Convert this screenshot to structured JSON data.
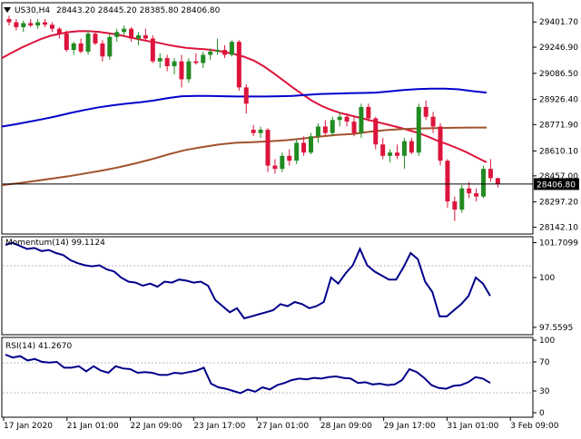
{
  "header": {
    "symbol_tf": "US30,H4",
    "ohlc": "28443.20 28445.20 28385.80 28406.80",
    "dropdown_icon": "triangle-down-icon"
  },
  "colors": {
    "background": "#ffffff",
    "bull_candle": "#228b22",
    "bear_candle": "#dc143c",
    "ma_fast": "#dc143c",
    "ma_mid": "#0000cd",
    "ma_slow": "#a0522d",
    "oscillator": "#00008b",
    "price_line": "#000000",
    "price_tag_bg": "#000000",
    "price_tag_text": "#ffffff"
  },
  "chart_data": [
    {
      "type": "candlestick",
      "title": "US30,H4",
      "ylim": [
        28100,
        29520
      ],
      "yticks": [
        "29401.70",
        "29246.90",
        "29086.50",
        "28926.40",
        "28771.90",
        "28610.10",
        "28457.00",
        "28297.20",
        "28142.10"
      ],
      "current_price": "28406.80",
      "time_labels": [
        "17 Jan 2020",
        "21 Jan 01:00",
        "22 Jan 09:00",
        "23 Jan 17:00",
        "27 Jan 01:00",
        "28 Jan 09:00",
        "29 Jan 17:00",
        "31 Jan 01:00",
        "3 Feb 09:00"
      ],
      "candles": [
        [
          29420,
          29440,
          29380,
          29400
        ],
        [
          29400,
          29420,
          29350,
          29370
        ],
        [
          29370,
          29410,
          29340,
          29395
        ],
        [
          29395,
          29420,
          29370,
          29380
        ],
        [
          29380,
          29420,
          29360,
          29400
        ],
        [
          29400,
          29420,
          29370,
          29385
        ],
        [
          29385,
          29400,
          29340,
          29360
        ],
        [
          29360,
          29370,
          29300,
          29330
        ],
        [
          29330,
          29350,
          29220,
          29230
        ],
        [
          29230,
          29280,
          29200,
          29270
        ],
        [
          29270,
          29300,
          29210,
          29220
        ],
        [
          29220,
          29350,
          29200,
          29330
        ],
        [
          29330,
          29340,
          29260,
          29270
        ],
        [
          29270,
          29290,
          29160,
          29190
        ],
        [
          29190,
          29330,
          29170,
          29310
        ],
        [
          29310,
          29360,
          29280,
          29340
        ],
        [
          29340,
          29380,
          29320,
          29360
        ],
        [
          29360,
          29370,
          29280,
          29300
        ],
        [
          29300,
          29340,
          29260,
          29320
        ],
        [
          29320,
          29360,
          29290,
          29300
        ],
        [
          29300,
          29320,
          29150,
          29160
        ],
        [
          29160,
          29210,
          29120,
          29180
        ],
        [
          29180,
          29200,
          29100,
          29130
        ],
        [
          29130,
          29180,
          29080,
          29160
        ],
        [
          29160,
          29200,
          29000,
          29050
        ],
        [
          29050,
          29180,
          29030,
          29160
        ],
        [
          29160,
          29210,
          29140,
          29150
        ],
        [
          29150,
          29220,
          29120,
          29200
        ],
        [
          29200,
          29240,
          29170,
          29220
        ],
        [
          29220,
          29300,
          29200,
          29230
        ],
        [
          29230,
          29260,
          29180,
          29200
        ],
        [
          29200,
          29290,
          29190,
          29280
        ],
        [
          29280,
          29290,
          28980,
          29000
        ],
        [
          29000,
          29020,
          28840,
          28900
        ],
        [
          28740,
          28770,
          28700,
          28720
        ],
        [
          28720,
          28760,
          28690,
          28740
        ],
        [
          28740,
          28750,
          28480,
          28520
        ],
        [
          28520,
          28560,
          28470,
          28500
        ],
        [
          28500,
          28600,
          28480,
          28580
        ],
        [
          28580,
          28620,
          28520,
          28550
        ],
        [
          28550,
          28680,
          28530,
          28660
        ],
        [
          28660,
          28700,
          28580,
          28600
        ],
        [
          28600,
          28720,
          28590,
          28700
        ],
        [
          28700,
          28780,
          28660,
          28760
        ],
        [
          28760,
          28800,
          28700,
          28720
        ],
        [
          28720,
          28820,
          28700,
          28800
        ],
        [
          28800,
          28850,
          28760,
          28820
        ],
        [
          28820,
          28840,
          28760,
          28790
        ],
        [
          28790,
          28820,
          28700,
          28720
        ],
        [
          28720,
          28900,
          28690,
          28880
        ],
        [
          28880,
          28900,
          28790,
          28810
        ],
        [
          28810,
          28820,
          28620,
          28650
        ],
        [
          28650,
          28690,
          28560,
          28580
        ],
        [
          28580,
          28620,
          28540,
          28600
        ],
        [
          28600,
          28650,
          28560,
          28580
        ],
        [
          28580,
          28690,
          28500,
          28670
        ],
        [
          28670,
          28690,
          28590,
          28600
        ],
        [
          28600,
          28900,
          28580,
          28880
        ],
        [
          28880,
          28920,
          28800,
          28820
        ],
        [
          28820,
          28850,
          28720,
          28760
        ],
        [
          28760,
          28780,
          28520,
          28550
        ],
        [
          28550,
          28560,
          28260,
          28300
        ],
        [
          28300,
          28330,
          28180,
          28250
        ],
        [
          28250,
          28400,
          28230,
          28380
        ],
        [
          28380,
          28420,
          28320,
          28350
        ],
        [
          28350,
          28380,
          28300,
          28330
        ],
        [
          28330,
          28520,
          28320,
          28500
        ],
        [
          28500,
          28560,
          28420,
          28443
        ],
        [
          28443,
          28445,
          28385,
          28406
        ]
      ],
      "series": [
        {
          "color": "#dc143c",
          "values": [
            29180,
            29212,
            29243,
            29270,
            29296,
            29317,
            29330,
            29340,
            29346,
            29345,
            29341,
            29333,
            29323,
            29310,
            29297,
            29285,
            29276,
            29263,
            29252,
            29243,
            29238,
            29234,
            29227,
            29217,
            29205,
            29188,
            29165,
            29130,
            29089,
            29045,
            29000,
            28958,
            28918,
            28886,
            28861,
            28842,
            28827,
            28813,
            28798,
            28783,
            28769,
            28754,
            28737,
            28720,
            28697,
            28671,
            28650,
            28626,
            28600,
            28570,
            28540
          ]
        },
        {
          "color": "#0000cd",
          "values": [
            28760,
            28774,
            28790,
            28806,
            28824,
            28844,
            28862,
            28878,
            28890,
            28900,
            28909,
            28920,
            28935,
            28946,
            28948,
            28948,
            28946,
            28944,
            28944,
            28944,
            28946,
            28948,
            28954,
            28960,
            28962,
            28964,
            28966,
            28968,
            28976,
            28984,
            28990,
            28992,
            28992,
            28988,
            28977,
            28968
          ]
        },
        {
          "color": "#a0522d",
          "values": [
            28400,
            28412,
            28426,
            28440,
            28455,
            28472,
            28490,
            28510,
            28534,
            28560,
            28590,
            28616,
            28634,
            28650,
            28660,
            28664,
            28669,
            28676,
            28686,
            28698,
            28708,
            28714,
            28728,
            28738,
            28745,
            28748,
            28750,
            28752,
            28754,
            28754
          ]
        }
      ]
    },
    {
      "type": "line",
      "title": "Momentum(14) 99.1124",
      "ylim": [
        97.2,
        102.0
      ],
      "yticks": [
        "101.7099",
        "100",
        "97.5595"
      ],
      "series": [
        {
          "color": "#00008b",
          "values": [
            101.6,
            101.7,
            101.55,
            101.4,
            101.45,
            101.3,
            101.35,
            101.2,
            101.1,
            100.85,
            100.7,
            100.6,
            100.55,
            100.6,
            100.4,
            100.3,
            100.0,
            99.8,
            99.75,
            99.6,
            99.7,
            99.55,
            99.8,
            99.75,
            99.9,
            99.85,
            99.75,
            99.8,
            99.6,
            98.9,
            98.6,
            98.3,
            98.5,
            98.0,
            98.1,
            98.2,
            98.3,
            98.4,
            98.7,
            98.6,
            98.8,
            98.7,
            98.5,
            98.6,
            98.8,
            100.0,
            99.7,
            100.2,
            100.6,
            101.4,
            100.6,
            100.3,
            100.1,
            99.9,
            99.9,
            100.5,
            101.2,
            100.9,
            99.8,
            99.3,
            98.1,
            98.1,
            98.4,
            98.7,
            99.1,
            100.0,
            99.7,
            99.1
          ]
        }
      ]
    },
    {
      "type": "line",
      "title": "RSI(14) 41.2670",
      "ylim": [
        0,
        100
      ],
      "yticks": [
        "100",
        "70",
        "30",
        "0"
      ],
      "series": [
        {
          "color": "#00008b",
          "values": [
            80,
            76,
            78,
            72,
            74,
            70,
            69,
            70,
            62,
            62,
            64,
            57,
            64,
            58,
            55,
            64,
            61,
            60,
            55,
            56,
            55,
            52,
            52,
            55,
            54,
            56,
            58,
            62,
            40,
            35,
            33,
            30,
            27,
            32,
            29,
            35,
            32,
            38,
            41,
            45,
            47,
            46,
            48,
            47,
            49,
            50,
            48,
            47,
            41,
            42,
            39,
            40,
            38,
            39,
            45,
            60,
            56,
            48,
            38,
            34,
            33,
            37,
            38,
            42,
            49,
            47,
            41
          ]
        }
      ]
    }
  ]
}
